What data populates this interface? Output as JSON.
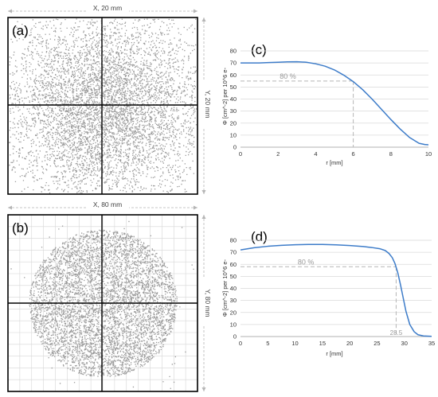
{
  "chart_data": [
    {
      "id": "a",
      "type": "scatter",
      "panel_label": "(a)",
      "width_label": "X, 20 mm",
      "height_label": "Y, 20 mm",
      "distribution": "gaussian",
      "point_color": "#9a9a9a",
      "grid": false
    },
    {
      "id": "b",
      "type": "scatter",
      "panel_label": "(b)",
      "width_label": "X, 80 mm",
      "height_label": "Y, 80 mm",
      "distribution": "uniform-disc",
      "point_color": "#9a9a9a",
      "grid": true
    },
    {
      "id": "c",
      "type": "line",
      "panel_label": "(c)",
      "xlabel": "r [mm]",
      "ylabel": "Φ [cm^-2] per 10^6 e-",
      "xlim": [
        0,
        10
      ],
      "ylim": [
        0,
        80
      ],
      "xticks": [
        0,
        2,
        4,
        6,
        8,
        10
      ],
      "yticks": [
        0,
        10,
        20,
        30,
        40,
        50,
        60,
        70,
        80
      ],
      "x": [
        0,
        0.5,
        1,
        1.5,
        2,
        2.5,
        3,
        3.5,
        4,
        4.5,
        5,
        5.5,
        6,
        6.5,
        7,
        7.5,
        8,
        8.5,
        9,
        9.5,
        9.8,
        10
      ],
      "y": [
        70,
        70,
        70,
        70.3,
        70.6,
        70.9,
        71,
        70.6,
        69.3,
        67.3,
        64.2,
        59.8,
        54.5,
        47.8,
        40,
        31.5,
        23,
        15,
        8,
        3.2,
        2.2,
        2
      ],
      "line_color": "#3d7cc9",
      "annotation": {
        "label": "80 %",
        "x": 6,
        "y": 55
      }
    },
    {
      "id": "d",
      "type": "line",
      "panel_label": "(d)",
      "xlabel": "r [mm]",
      "ylabel": "Φ [cm^-2] per 10^6 e-",
      "xlim": [
        0,
        35
      ],
      "ylim": [
        0,
        80
      ],
      "xticks": [
        0,
        5,
        10,
        15,
        20,
        25,
        30,
        35
      ],
      "yticks": [
        0,
        10,
        20,
        30,
        40,
        50,
        60,
        70,
        80
      ],
      "x": [
        0,
        2.5,
        5,
        7.5,
        10,
        12.5,
        15,
        17.5,
        20,
        22.5,
        24,
        25.5,
        26.5,
        27.2,
        27.8,
        28.3,
        28.8,
        29.3,
        29.8,
        30.3,
        31,
        31.8,
        32.5,
        33.5,
        35
      ],
      "y": [
        72,
        73.8,
        75,
        75.8,
        76.3,
        76.5,
        76.5,
        76.2,
        75.6,
        74.8,
        74,
        73,
        71.5,
        69,
        65.5,
        60.5,
        53,
        43,
        32,
        21,
        10,
        4,
        1.5,
        0.5,
        0.2
      ],
      "line_color": "#3d7cc9",
      "annotation": {
        "label": "80 %",
        "x": 28.5,
        "y": 58,
        "x_label": "28.5"
      }
    }
  ]
}
